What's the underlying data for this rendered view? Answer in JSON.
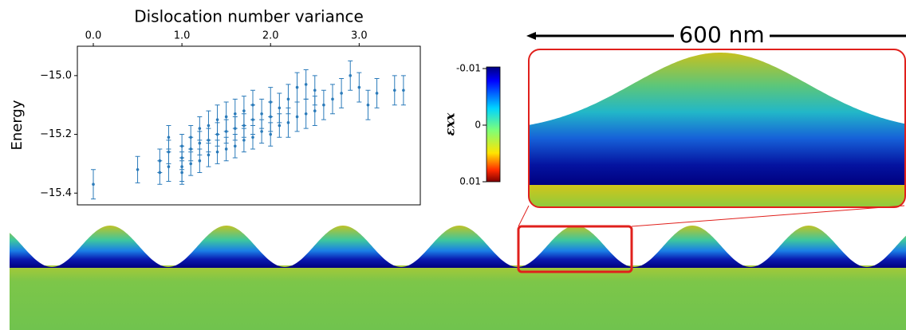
{
  "chart_data": {
    "type": "errorbar",
    "xlabel": "Dislocation number variance",
    "ylabel": "Energy",
    "color": "#2b7bba",
    "xlim": [
      -0.18,
      3.69
    ],
    "ylim": [
      -15.44,
      -14.9
    ],
    "xticks": [
      {
        "value": 0,
        "label": "0.0"
      },
      {
        "value": 1,
        "label": "1.0"
      },
      {
        "value": 2,
        "label": "2.0"
      },
      {
        "value": 3,
        "label": "3.0"
      }
    ],
    "yticks": [
      {
        "value": -15.0,
        "label": "−15.0"
      },
      {
        "value": -15.2,
        "label": "−15.2"
      },
      {
        "value": -15.4,
        "label": "−15.4"
      }
    ],
    "x": [
      0,
      0.5,
      0.75,
      0.75,
      0.85,
      0.85,
      0.85,
      1.0,
      1.0,
      1.0,
      1.0,
      1.1,
      1.1,
      1.1,
      1.2,
      1.2,
      1.2,
      1.3,
      1.3,
      1.3,
      1.4,
      1.4,
      1.4,
      1.5,
      1.5,
      1.5,
      1.6,
      1.6,
      1.6,
      1.7,
      1.7,
      1.7,
      1.8,
      1.8,
      1.8,
      1.9,
      1.9,
      2.0,
      2.0,
      2.0,
      2.1,
      2.1,
      2.2,
      2.2,
      2.3,
      2.3,
      2.4,
      2.4,
      2.5,
      2.5,
      2.6,
      2.7,
      2.8,
      2.9,
      3.0,
      3.1,
      3.2,
      3.4,
      3.5
    ],
    "values": [
      -15.37,
      -15.32,
      -15.33,
      -15.29,
      -15.31,
      -15.26,
      -15.21,
      -15.33,
      -15.28,
      -15.24,
      -15.31,
      -15.3,
      -15.25,
      -15.21,
      -15.29,
      -15.23,
      -15.18,
      -15.27,
      -15.22,
      -15.17,
      -15.26,
      -15.2,
      -15.15,
      -15.25,
      -15.19,
      -15.14,
      -15.24,
      -15.18,
      -15.13,
      -15.22,
      -15.17,
      -15.12,
      -15.21,
      -15.15,
      -15.1,
      -15.19,
      -15.13,
      -15.2,
      -15.14,
      -15.09,
      -15.17,
      -15.11,
      -15.16,
      -15.08,
      -15.14,
      -15.04,
      -15.13,
      -15.03,
      -15.12,
      -15.05,
      -15.1,
      -15.08,
      -15.06,
      -15.0,
      -15.04,
      -15.1,
      -15.06,
      -15.05,
      -15.05
    ],
    "errors": [
      0.05,
      0.045,
      0.04,
      0.04,
      0.05,
      0.04,
      0.04,
      0.04,
      0.04,
      0.04,
      0.05,
      0.04,
      0.04,
      0.04,
      0.04,
      0.04,
      0.04,
      0.04,
      0.04,
      0.05,
      0.04,
      0.04,
      0.05,
      0.04,
      0.04,
      0.05,
      0.04,
      0.04,
      0.05,
      0.04,
      0.04,
      0.05,
      0.04,
      0.05,
      0.05,
      0.04,
      0.05,
      0.04,
      0.05,
      0.05,
      0.04,
      0.05,
      0.05,
      0.05,
      0.05,
      0.05,
      0.05,
      0.05,
      0.05,
      0.05,
      0.05,
      0.05,
      0.05,
      0.05,
      0.05,
      0.05,
      0.05,
      0.05,
      0.05
    ]
  },
  "colorbar": {
    "label": "εxx",
    "ticks": [
      -0.01,
      0,
      0.01
    ]
  },
  "scale_bar": "600 nm"
}
